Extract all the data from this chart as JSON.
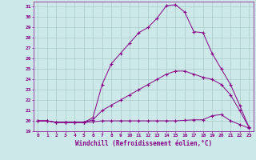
{
  "xlabel": "Windchill (Refroidissement éolien,°C)",
  "bg_color": "#cce8e8",
  "line_color": "#880088",
  "grid_color": "#aacccc",
  "xlim": [
    -0.5,
    23.5
  ],
  "ylim": [
    19,
    31.5
  ],
  "yticks": [
    19,
    20,
    21,
    22,
    23,
    24,
    25,
    26,
    27,
    28,
    29,
    30,
    31
  ],
  "xticks": [
    0,
    1,
    2,
    3,
    4,
    5,
    6,
    7,
    8,
    9,
    10,
    11,
    12,
    13,
    14,
    15,
    16,
    17,
    18,
    19,
    20,
    21,
    22,
    23
  ],
  "curve1_x": [
    0,
    1,
    2,
    3,
    4,
    5,
    6,
    7,
    8,
    9,
    10,
    11,
    12,
    13,
    14,
    15,
    16,
    17,
    18,
    19,
    20,
    21,
    22,
    23
  ],
  "curve1_y": [
    20.0,
    20.0,
    19.85,
    19.85,
    19.85,
    19.85,
    19.9,
    20.0,
    20.0,
    20.0,
    20.0,
    20.0,
    20.0,
    20.0,
    20.0,
    20.0,
    20.05,
    20.1,
    20.1,
    20.5,
    20.6,
    20.0,
    19.65,
    19.3
  ],
  "curve2_x": [
    0,
    1,
    2,
    3,
    4,
    5,
    6,
    7,
    8,
    9,
    10,
    11,
    12,
    13,
    14,
    15,
    16,
    17,
    18,
    19,
    20,
    21,
    22,
    23
  ],
  "curve2_y": [
    20.0,
    20.0,
    19.85,
    19.85,
    19.85,
    19.85,
    20.1,
    21.0,
    21.5,
    22.0,
    22.5,
    23.0,
    23.5,
    24.0,
    24.5,
    24.8,
    24.8,
    24.5,
    24.2,
    24.0,
    23.5,
    22.5,
    21.0,
    19.4
  ],
  "curve3_x": [
    0,
    1,
    2,
    3,
    4,
    5,
    6,
    7,
    8,
    9,
    10,
    11,
    12,
    13,
    14,
    15,
    16,
    17,
    18,
    19,
    20,
    21,
    22,
    23
  ],
  "curve3_y": [
    20.0,
    20.0,
    19.85,
    19.85,
    19.85,
    19.85,
    20.3,
    23.5,
    25.5,
    26.5,
    27.5,
    28.5,
    29.0,
    29.9,
    31.1,
    31.2,
    30.5,
    28.6,
    28.5,
    26.5,
    25.0,
    23.5,
    21.5,
    19.4
  ]
}
